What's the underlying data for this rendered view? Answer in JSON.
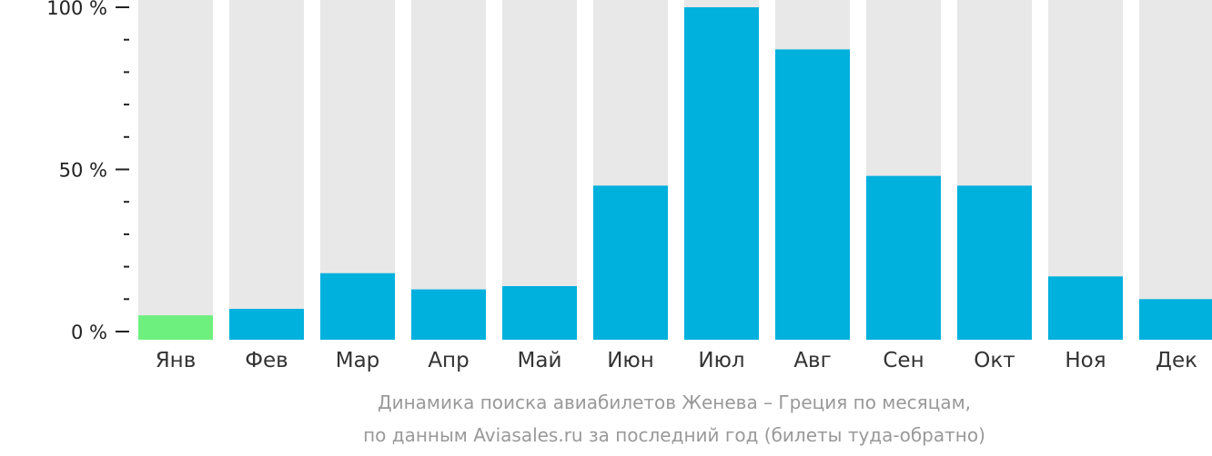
{
  "chart_data": {
    "type": "bar",
    "categories": [
      "Янв",
      "Фев",
      "Мар",
      "Апр",
      "Май",
      "Июн",
      "Июл",
      "Авг",
      "Сен",
      "Окт",
      "Ноя",
      "Дек"
    ],
    "values": [
      5,
      7,
      18,
      13,
      14,
      45,
      100,
      87,
      48,
      45,
      17,
      10
    ],
    "ylim": [
      0,
      100
    ],
    "yticks": [
      "0 %",
      "50 %",
      "100 %"
    ],
    "colors": {
      "bar": "#00b0dd",
      "highlight": "#6ef07e",
      "background_bar": "#e8e8e8",
      "axis": "#222222"
    },
    "highlight_index": 0,
    "grid": false
  },
  "caption": {
    "line1": "Динамика поиска авиабилетов Женева – Греция по месяцам,",
    "line2": "по данным Aviasales.ru за последний год (билеты туда-обратно)"
  }
}
